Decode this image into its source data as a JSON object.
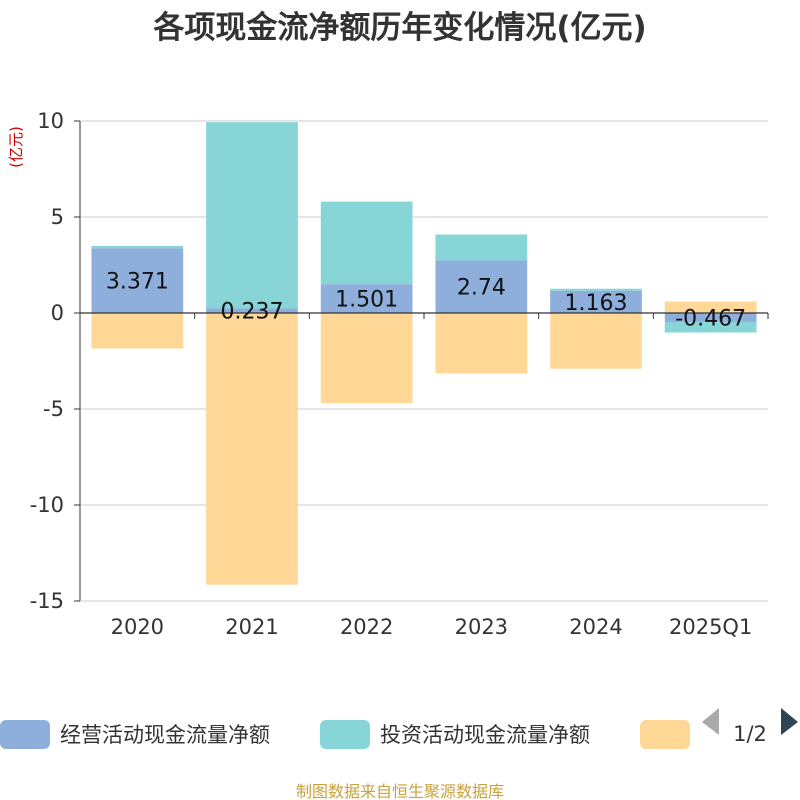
{
  "chart_data": {
    "type": "bar",
    "stacked": true,
    "title": "各项现金流净额历年变化情况(亿元)",
    "ylabel": "(亿元)",
    "categories": [
      "2020",
      "2021",
      "2022",
      "2023",
      "2024",
      "2025Q1"
    ],
    "ylim": [
      -15,
      10
    ],
    "yticks": [
      10,
      5,
      0,
      -5,
      -10,
      -15
    ],
    "grid": true,
    "legend_position": "bottom",
    "series": [
      {
        "name": "经营活动现金流量净额",
        "color": "#8eaedb",
        "values": [
          3.371,
          0.237,
          1.501,
          2.74,
          1.163,
          -0.467
        ],
        "labels": [
          "3.371",
          "0.237",
          "1.501",
          "2.74",
          "1.163",
          "-0.467"
        ]
      },
      {
        "name": "投资活动现金流量净额",
        "color": "#88d5d8",
        "values": [
          0.12,
          9.7,
          4.3,
          1.35,
          0.1,
          -0.55
        ],
        "labels": []
      },
      {
        "name": "",
        "color": "#ffd898",
        "values": [
          -1.85,
          -14.15,
          -4.7,
          -3.15,
          -2.9,
          0.6
        ],
        "labels": []
      }
    ],
    "pager": "1/2",
    "source": "制图数据来自恒生聚源数据库"
  }
}
